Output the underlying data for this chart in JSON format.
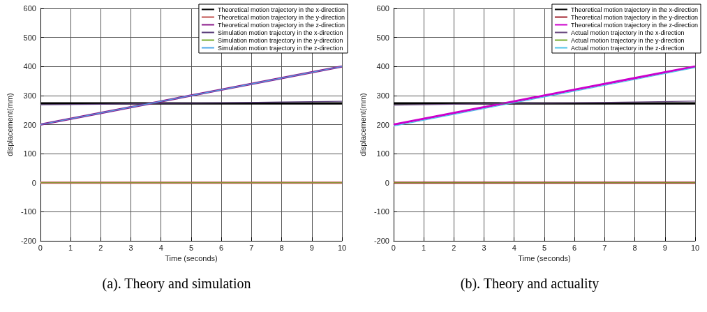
{
  "chart_data": [
    {
      "type": "line",
      "title": "(a). Theory and simulation",
      "xlabel": "Time (seconds)",
      "ylabel": "displacement(mm)",
      "x": [
        0,
        2,
        4,
        6,
        8,
        10
      ],
      "xlim": [
        0,
        10
      ],
      "xticks": [
        0,
        1,
        2,
        3,
        4,
        5,
        6,
        7,
        8,
        9,
        10
      ],
      "ylim": [
        -200,
        600
      ],
      "yticks": [
        -200,
        -100,
        0,
        100,
        200,
        300,
        400,
        500,
        600
      ],
      "grid": true,
      "legend": "top right",
      "series": [
        {
          "name": "Theoretical motion trajectory in the x-direction",
          "color": "#000000",
          "values": [
            273,
            273,
            273,
            273,
            273,
            273
          ]
        },
        {
          "name": "Theoretical motion trajectory in the y-direction",
          "color": "#c0504d",
          "values": [
            0,
            0,
            0,
            0,
            0,
            0
          ]
        },
        {
          "name": "Theoretical motion trajectory in the z-direction",
          "color": "#8b1a8b",
          "values": [
            200,
            240,
            280,
            320,
            360,
            400
          ]
        },
        {
          "name": "Simulation motion trajectory in the x-direction",
          "color": "#5a3d7a",
          "values": [
            268,
            270,
            273,
            275,
            278,
            280
          ]
        },
        {
          "name": "Simulation motion trajectory in the y-direction",
          "color": "#77ac30",
          "values": [
            0,
            0,
            0,
            0,
            0,
            0
          ]
        },
        {
          "name": "Simulation motion trajectory in the z-direction",
          "color": "#4da6e8",
          "values": [
            200,
            240,
            280,
            320,
            360,
            400
          ]
        }
      ]
    },
    {
      "type": "line",
      "title": "(b). Theory and actuality",
      "xlabel": "Time (seconds)",
      "ylabel": "displacement(mm)",
      "x": [
        0,
        2,
        4,
        6,
        8,
        10
      ],
      "xlim": [
        0,
        10
      ],
      "xticks": [
        0,
        1,
        2,
        3,
        4,
        5,
        6,
        7,
        8,
        9,
        10
      ],
      "ylim": [
        -200,
        600
      ],
      "yticks": [
        -200,
        -100,
        0,
        100,
        200,
        300,
        400,
        500,
        600
      ],
      "grid": true,
      "legend": "top right",
      "series": [
        {
          "name": "Theoretical motion trajectory in the x-direction",
          "color": "#000000",
          "values": [
            273,
            273,
            273,
            273,
            273,
            273
          ]
        },
        {
          "name": "Theoretical motion trajectory in the y-direction",
          "color": "#a0202a",
          "values": [
            0,
            0,
            0,
            0,
            0,
            0
          ]
        },
        {
          "name": "Theoretical motion trajectory in the z-direction",
          "color": "#cc00cc",
          "values": [
            200,
            240,
            280,
            320,
            360,
            400
          ]
        },
        {
          "name": "Actual motion trajectory in the x-direction",
          "color": "#6a4a80",
          "values": [
            267,
            270,
            273,
            275,
            278,
            281
          ]
        },
        {
          "name": "Actual motion trajectory in the y-direction",
          "color": "#77ac30",
          "values": [
            0,
            0,
            0,
            0,
            0,
            0
          ]
        },
        {
          "name": "Actual motion trajectory in the z-direction",
          "color": "#4dc3e8",
          "values": [
            195,
            235,
            275,
            315,
            355,
            396
          ]
        }
      ]
    }
  ]
}
